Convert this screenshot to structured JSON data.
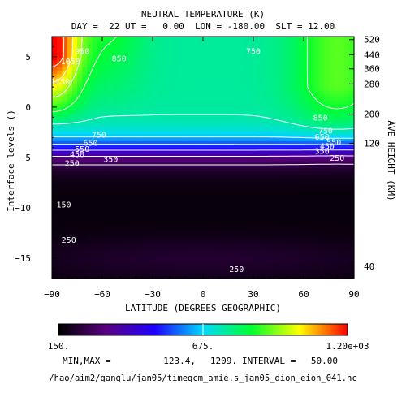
{
  "chart_data": {
    "type": "heatmap",
    "title": "NEUTRAL TEMPERATURE (K)",
    "subtitle": "DAY =  22 UT =   0.00  LON = -180.00  SLT = 12.00",
    "xlabel": "LATITUDE (DEGREES GEOGRAPHIC)",
    "ylabel": "Interface levels ()",
    "ylabel_right": "AVE HEIGHT (KM)",
    "xlim": [
      -90,
      90
    ],
    "ylim": [
      -17,
      7
    ],
    "x_ticks": [
      {
        "v": -90,
        "label": "−90"
      },
      {
        "v": -60,
        "label": "−60"
      },
      {
        "v": -30,
        "label": "−30"
      },
      {
        "v": 0,
        "label": "0"
      },
      {
        "v": 30,
        "label": "30"
      },
      {
        "v": 60,
        "label": "60"
      },
      {
        "v": 90,
        "label": "90"
      }
    ],
    "y_ticks": [
      {
        "v": 5,
        "label": "5"
      },
      {
        "v": 0,
        "label": "0"
      },
      {
        "v": -5,
        "label": "−5"
      },
      {
        "v": -10,
        "label": "−10"
      },
      {
        "v": -15,
        "label": "−15"
      }
    ],
    "height_ticks": [
      {
        "v": 6.7,
        "label": "520"
      },
      {
        "v": 5.2,
        "label": "440"
      },
      {
        "v": 3.8,
        "label": "360"
      },
      {
        "v": 2.3,
        "label": "280"
      },
      {
        "v": -0.7,
        "label": "200"
      },
      {
        "v": -3.6,
        "label": "120"
      },
      {
        "v": -15.8,
        "label": "40"
      }
    ],
    "contour_labels": [
      {
        "x": -85,
        "y": 2.5,
        "text": "1150"
      },
      {
        "x": -79,
        "y": 4.5,
        "text": "1050"
      },
      {
        "x": -72,
        "y": 5.5,
        "text": "950"
      },
      {
        "x": -50,
        "y": 4.8,
        "text": "850"
      },
      {
        "x": 30,
        "y": 5.5,
        "text": "750"
      },
      {
        "x": -62,
        "y": -2.8,
        "text": "750"
      },
      {
        "x": -67,
        "y": -3.6,
        "text": "650"
      },
      {
        "x": -72,
        "y": -4.2,
        "text": "550"
      },
      {
        "x": -75,
        "y": -4.7,
        "text": "450"
      },
      {
        "x": -55,
        "y": -5.2,
        "text": "350"
      },
      {
        "x": -78,
        "y": -5.6,
        "text": "250"
      },
      {
        "x": -83,
        "y": -9.7,
        "text": "150"
      },
      {
        "x": -80,
        "y": -13.2,
        "text": "250"
      },
      {
        "x": 20,
        "y": -16.1,
        "text": "250"
      },
      {
        "x": 70,
        "y": -1.1,
        "text": "850"
      },
      {
        "x": 73,
        "y": -2.4,
        "text": "750"
      },
      {
        "x": 71,
        "y": -3.0,
        "text": "650"
      },
      {
        "x": 78,
        "y": -3.5,
        "text": "550"
      },
      {
        "x": 74,
        "y": -3.9,
        "text": "450"
      },
      {
        "x": 71,
        "y": -4.4,
        "text": "350"
      },
      {
        "x": 80,
        "y": -5.1,
        "text": "250"
      }
    ],
    "colorbar": {
      "min_label": "150.",
      "mid_label": "675.",
      "max_label": "1.20e+03",
      "stops": [
        "#000000",
        "#5a0080",
        "#1e00ff",
        "#00d8ff",
        "#00ff30",
        "#ffff00",
        "#ff0000"
      ]
    },
    "stats": {
      "label": "MIN,MAX =",
      "min": "123.4,",
      "max": "1209.",
      "interval_label": "INTERVAL =",
      "interval": "50.00"
    },
    "source_file": "/hao/aim2/ganglu/jan05/timegcm_amie.s_jan05_dion_eion_041.nc"
  }
}
